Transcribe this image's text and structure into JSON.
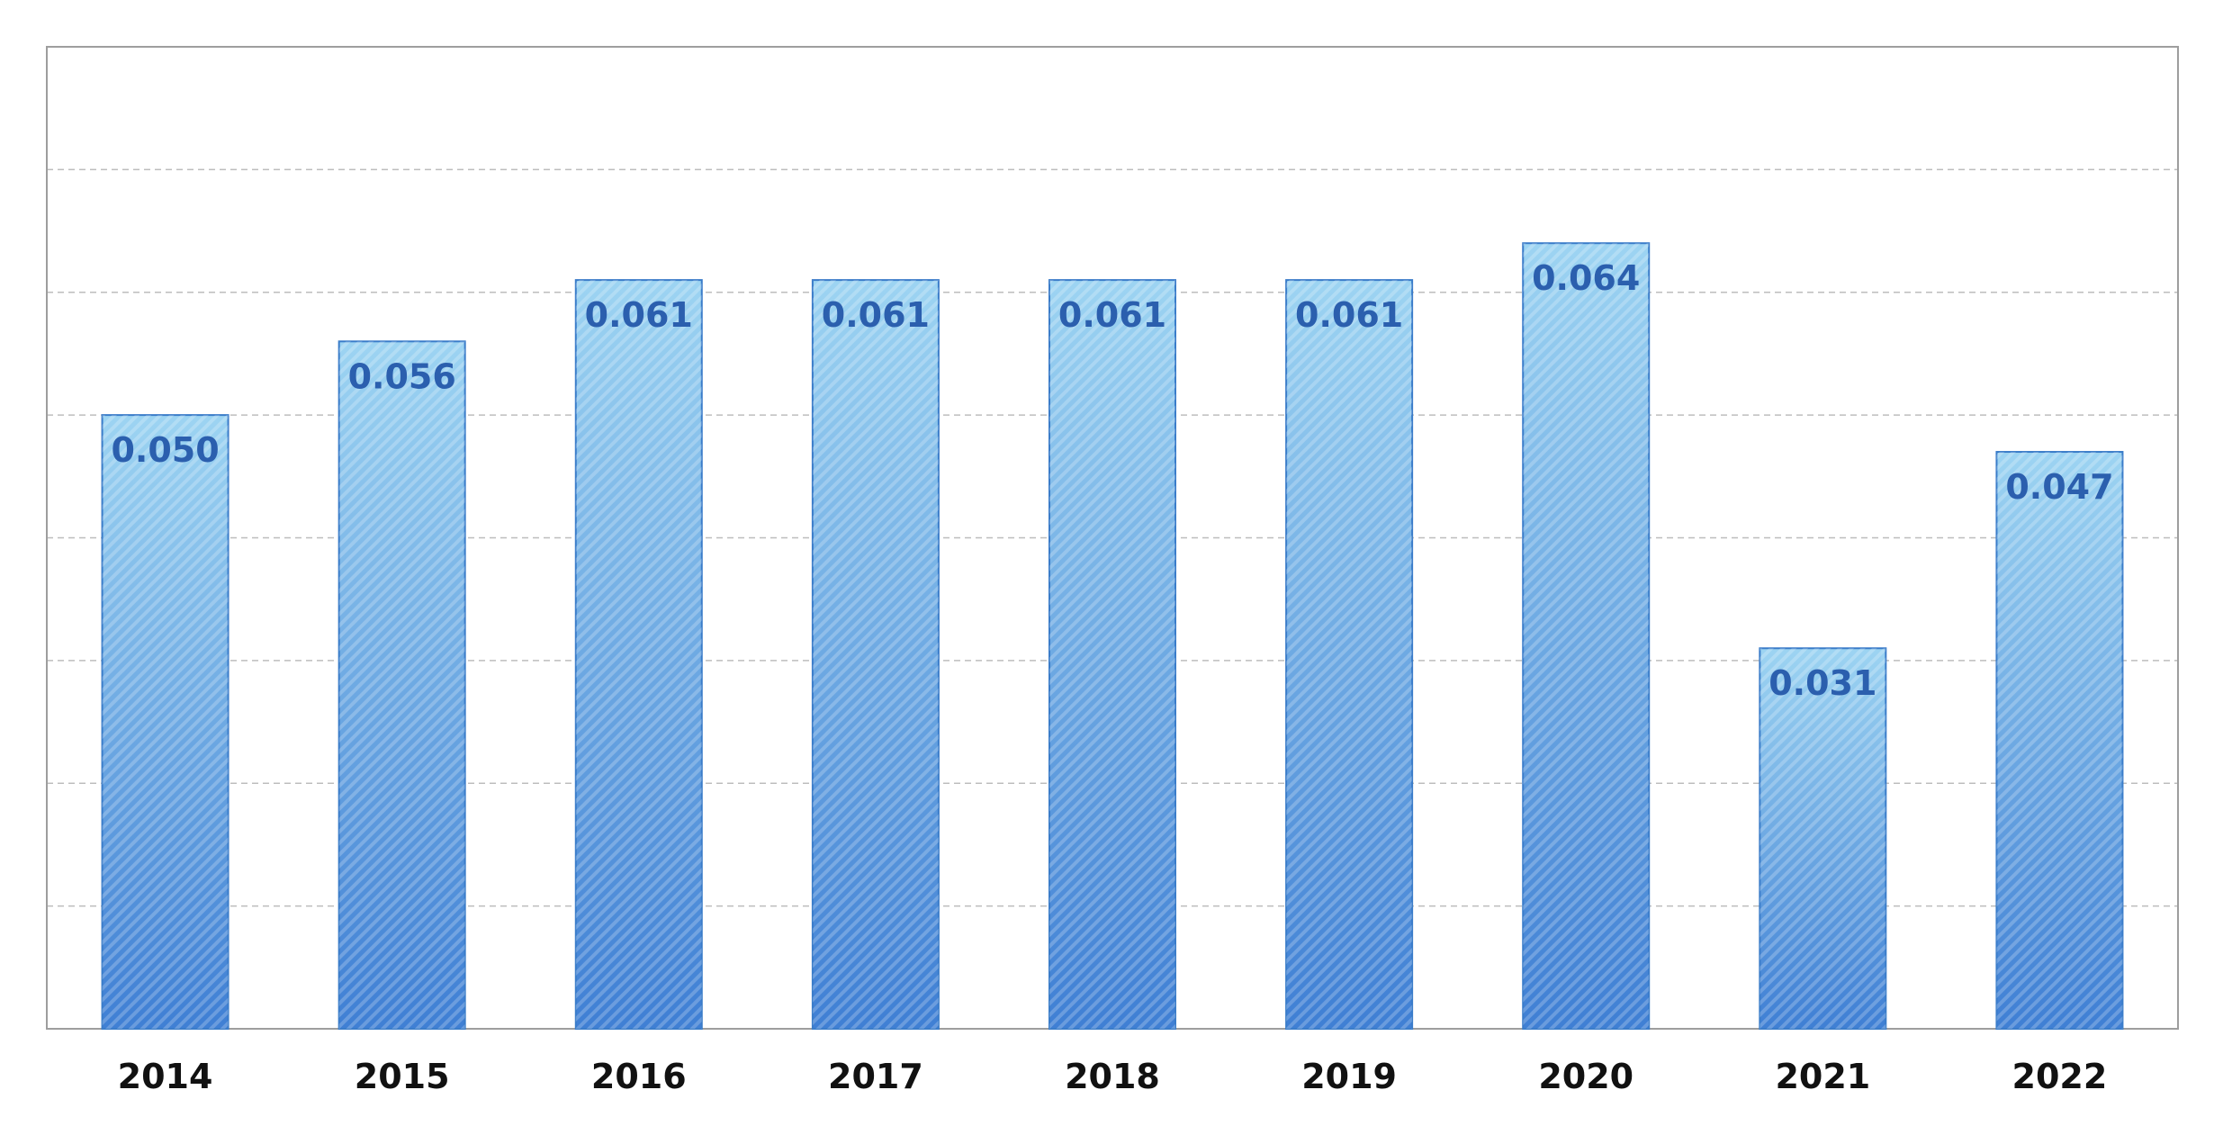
{
  "chart_data": {
    "type": "bar",
    "title": "",
    "xlabel": "",
    "ylabel": "",
    "categories": [
      "2014",
      "2015",
      "2016",
      "2017",
      "2018",
      "2019",
      "2020",
      "2021",
      "2022"
    ],
    "values": [
      0.05,
      0.056,
      0.061,
      0.061,
      0.061,
      0.061,
      0.064,
      0.031,
      0.047
    ],
    "value_labels": [
      "0.050",
      "0.056",
      "0.061",
      "0.061",
      "0.061",
      "0.061",
      "0.064",
      "0.031",
      "0.047"
    ],
    "ylim": [
      0,
      0.08
    ],
    "grid": true,
    "legend": "none",
    "colors": {
      "bar_top": "#9dd4f2",
      "bar_bottom": "#3f7fd4",
      "bar_stroke": "#3a7cc9",
      "label": "#2b5fae",
      "grid": "#bdbdbd",
      "frame": "#9e9e9e"
    }
  }
}
